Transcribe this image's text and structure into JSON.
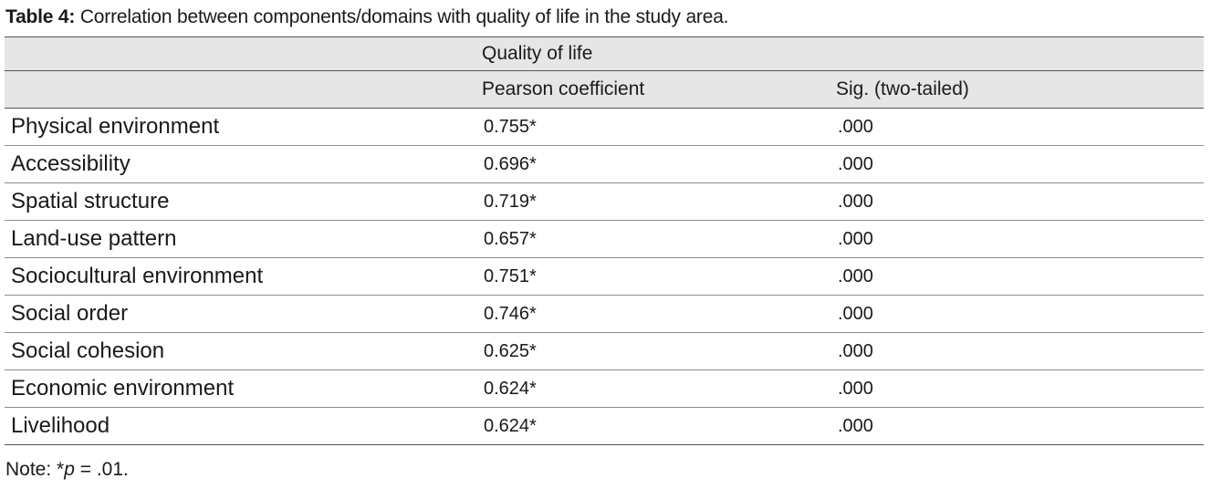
{
  "caption": {
    "label": "Table 4:",
    "text": "Correlation between components/domains with quality of life in the study area."
  },
  "header": {
    "group_label": "Quality of life",
    "col_pearson": "Pearson coefficient",
    "col_sig": "Sig. (two-tailed)"
  },
  "rows": [
    {
      "label": "Physical environment",
      "pearson": "0.755*",
      "sig": ".000"
    },
    {
      "label": "Accessibility",
      "pearson": "0.696*",
      "sig": ".000"
    },
    {
      "label": "Spatial structure",
      "pearson": "0.719*",
      "sig": ".000"
    },
    {
      "label": "Land-use pattern",
      "pearson": "0.657*",
      "sig": ".000"
    },
    {
      "label": "Sociocultural environment",
      "pearson": "0.751*",
      "sig": ".000"
    },
    {
      "label": "Social order",
      "pearson": "0.746*",
      "sig": ".000"
    },
    {
      "label": "Social cohesion",
      "pearson": "0.625*",
      "sig": ".000"
    },
    {
      "label": "Economic environment",
      "pearson": "0.624*",
      "sig": ".000"
    },
    {
      "label": "Livelihood",
      "pearson": "0.624*",
      "sig": ".000"
    }
  ],
  "note": {
    "prefix": "Note: *",
    "p": "p",
    "suffix": " = .01."
  }
}
